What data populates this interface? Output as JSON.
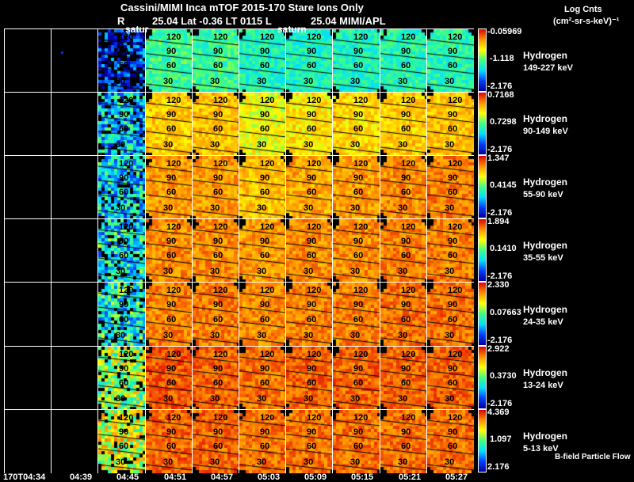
{
  "header": {
    "title": "Cassini/MIMI Inca mTOF  2015-170   Stare   Ions Only",
    "subtitle_r": "R",
    "subtitle_mid": "25.04 Lat -0.36 LT 0115 L",
    "subtitle_l": "25.04  MIMI/APL",
    "saturn_label_1": "satur",
    "saturn_label_2": "saturn"
  },
  "units": {
    "line1": "Log Cnts",
    "line2": "(cm²-sr-s-keV)⁻¹"
  },
  "footer_note": "B-field Particle Flow",
  "chart_data": {
    "type": "heatmap",
    "title": "Cassini/MIMI Inca mTOF 2015-170 Stare Ions Only",
    "time_ticks": [
      "170T04:34",
      "04:39",
      "04:45",
      "04:51",
      "04:57",
      "05:03",
      "05:09",
      "05:15",
      "05:21",
      "05:27"
    ],
    "contour_labels": [
      "120",
      "90",
      "60",
      "30"
    ],
    "rows": [
      {
        "species": "Hydrogen",
        "energy": "149-227 keV",
        "max": "-0.05969",
        "mid": "-1.118",
        "min": "-2.176",
        "level": [
          0,
          0,
          0.1,
          0.45,
          0.45,
          0.4,
          0.4,
          0.4,
          0.42,
          0.42
        ]
      },
      {
        "species": "Hydrogen",
        "energy": "90-149 keV",
        "max": "0.7168",
        "mid": "0.7298",
        "min": "-2.176",
        "level": [
          0,
          0,
          0.3,
          0.7,
          0.72,
          0.62,
          0.66,
          0.68,
          0.7,
          0.72
        ]
      },
      {
        "species": "Hydrogen",
        "energy": "55-90 keV",
        "max": "1.347",
        "mid": "0.4145",
        "min": "-2.176",
        "level": [
          0,
          0,
          0.32,
          0.78,
          0.78,
          0.72,
          0.76,
          0.78,
          0.8,
          0.82
        ]
      },
      {
        "species": "Hydrogen",
        "energy": "35-55 keV",
        "max": "1.894",
        "mid": "0.1410",
        "min": "-2.176",
        "level": [
          0,
          0,
          0.35,
          0.8,
          0.8,
          0.78,
          0.8,
          0.8,
          0.82,
          0.82
        ]
      },
      {
        "species": "Hydrogen",
        "energy": "24-35 keV",
        "max": "2.330",
        "mid": "0.07663",
        "min": "-2.176",
        "level": [
          0,
          0,
          0.38,
          0.82,
          0.82,
          0.8,
          0.82,
          0.82,
          0.84,
          0.84
        ]
      },
      {
        "species": "Hydrogen",
        "energy": "13-24 keV",
        "max": "2.922",
        "mid": "0.3730",
        "min": "-2.176",
        "level": [
          0,
          0,
          0.55,
          0.88,
          0.86,
          0.84,
          0.86,
          0.86,
          0.86,
          0.86
        ]
      },
      {
        "species": "Hydrogen",
        "energy": "5-13 keV",
        "max": "4.369",
        "mid": "1.097",
        "min": "2.176",
        "level": [
          0,
          0,
          0.62,
          0.86,
          0.86,
          0.84,
          0.84,
          0.84,
          0.84,
          0.84
        ]
      }
    ]
  }
}
